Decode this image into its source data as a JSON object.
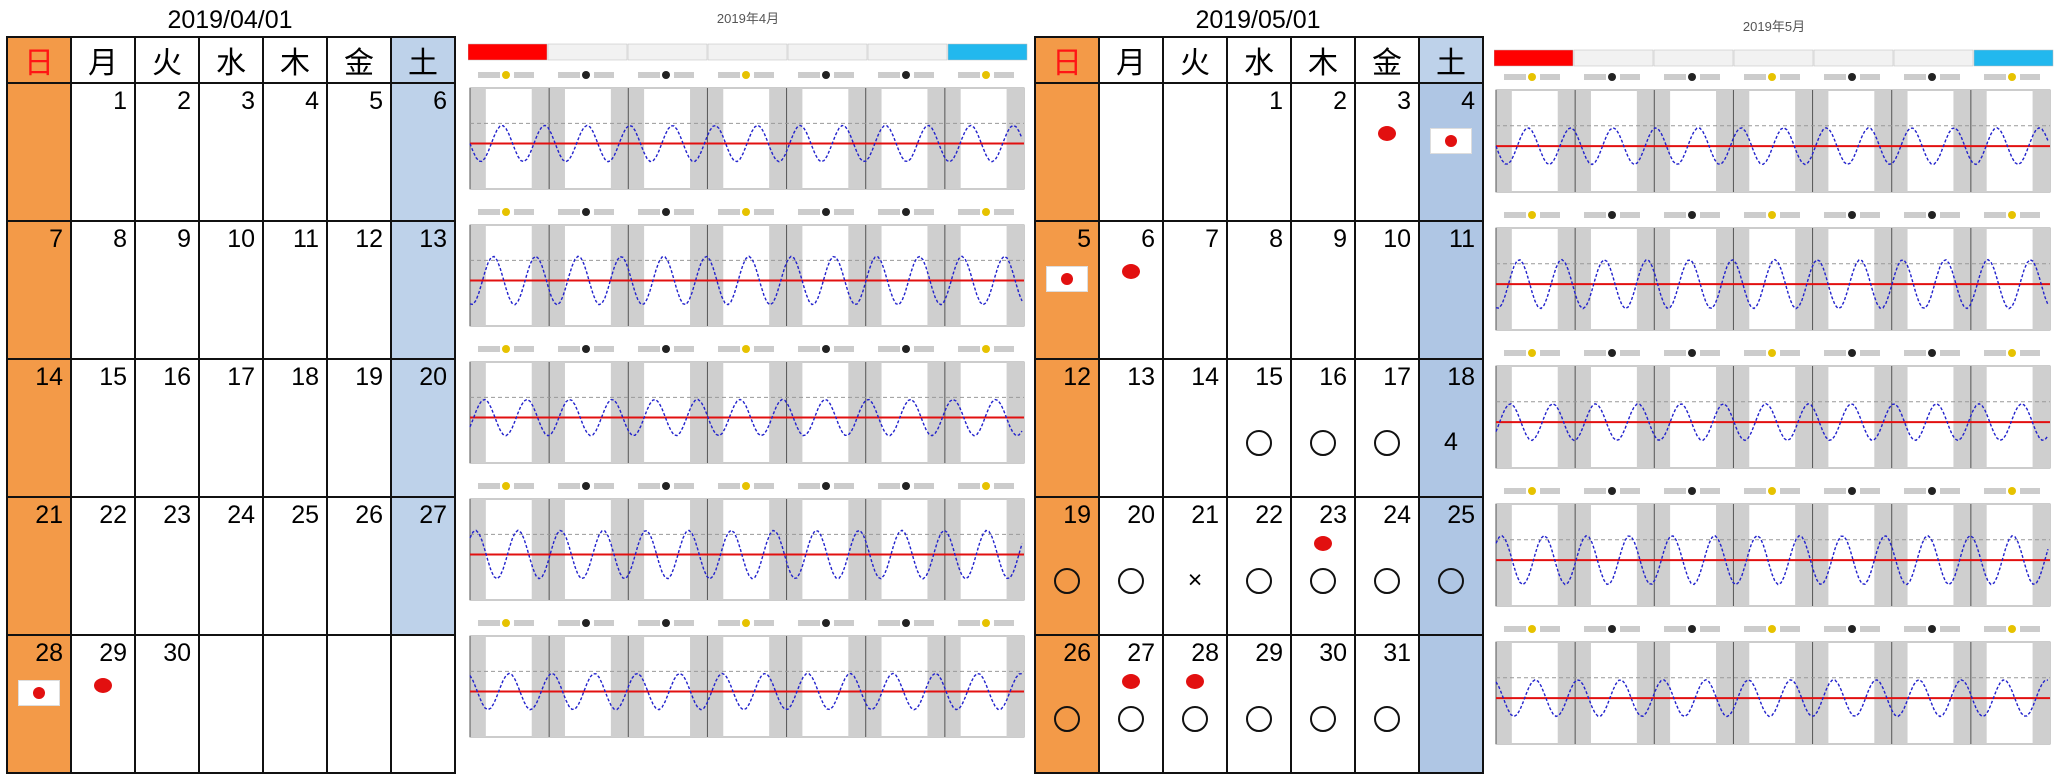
{
  "april": {
    "title": "2019/04/01",
    "weekdays": [
      "日",
      "月",
      "火",
      "水",
      "木",
      "金",
      "土"
    ],
    "weeks": [
      [
        "",
        "1",
        "2",
        "3",
        "4",
        "5",
        "6"
      ],
      [
        "7",
        "8",
        "9",
        "10",
        "11",
        "12",
        "13"
      ],
      [
        "14",
        "15",
        "16",
        "17",
        "18",
        "19",
        "20"
      ],
      [
        "21",
        "22",
        "23",
        "24",
        "25",
        "26",
        "27"
      ],
      [
        "28",
        "29",
        "30",
        "",
        "",
        "",
        ""
      ]
    ],
    "marks": [
      [
        "",
        "",
        "",
        "",
        "",
        "",
        ""
      ],
      [
        "",
        "",
        "",
        "",
        "",
        "",
        ""
      ],
      [
        "",
        "",
        "",
        "",
        "",
        "",
        ""
      ],
      [
        "",
        "",
        "",
        "",
        "",
        "",
        ""
      ],
      [
        "flag",
        "dot",
        "",
        "",
        "",
        "",
        ""
      ]
    ]
  },
  "may": {
    "title": "2019/05/01",
    "weekdays": [
      "日",
      "月",
      "火",
      "水",
      "木",
      "金",
      "土"
    ],
    "weeks": [
      [
        "",
        "",
        "",
        "1",
        "2",
        "3",
        "4"
      ],
      [
        "5",
        "6",
        "7",
        "8",
        "9",
        "10",
        "11"
      ],
      [
        "12",
        "13",
        "14",
        "15",
        "16",
        "17",
        "18"
      ],
      [
        "19",
        "20",
        "21",
        "22",
        "23",
        "24",
        "25"
      ],
      [
        "26",
        "27",
        "28",
        "29",
        "30",
        "31",
        ""
      ]
    ],
    "marks": [
      [
        "",
        "",
        "",
        "",
        "",
        "dot",
        "flag"
      ],
      [
        "flag",
        "dot",
        "",
        "",
        "",
        "",
        ""
      ],
      [
        "",
        "",
        "",
        "circle",
        "circle",
        "circle",
        "4"
      ],
      [
        "circle",
        "circle",
        "×",
        "circle",
        "dot+circle",
        "circle",
        "circle"
      ],
      [
        "circle",
        "dot+circle",
        "dot+circle",
        "circle",
        "circle",
        "circle",
        ""
      ]
    ]
  },
  "tide_april": {
    "title": "2019年4月",
    "colors": {
      "sun": "#ff0000",
      "sat": "#22b8ee",
      "line": "#e21010",
      "wave": "#2222cc"
    }
  },
  "tide_may": {
    "title": "2019年5月",
    "colors": {
      "sun": "#ff0000",
      "sat": "#22b8ee",
      "line": "#e21010",
      "wave": "#2222cc"
    }
  }
}
